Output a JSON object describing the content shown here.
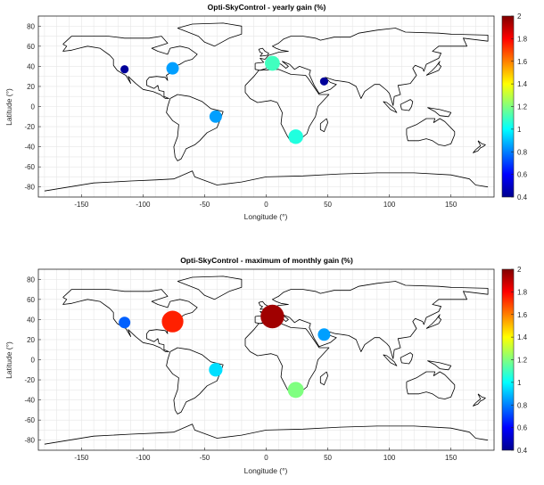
{
  "chart_data": [
    {
      "type": "scatter",
      "title": "Opti-SkyControl - yearly gain (%)",
      "xlabel": "Longitude (°)",
      "ylabel": "Latitude (°)",
      "xlim": [
        -185,
        185
      ],
      "ylim": [
        -90,
        90
      ],
      "xticks": [
        -150,
        -100,
        -50,
        0,
        50,
        100,
        150
      ],
      "yticks": [
        -80,
        -60,
        -40,
        -20,
        0,
        20,
        40,
        60,
        80
      ],
      "colorbar": {
        "min": 0.4,
        "max": 2,
        "ticks": [
          "0.4",
          "0.6",
          "0.8",
          "1",
          "1.2",
          "1.4",
          "1.6",
          "1.8",
          "2"
        ]
      },
      "points": [
        {
          "lon": -115,
          "lat": 37,
          "value": 0.42
        },
        {
          "lon": -76,
          "lat": 38,
          "value": 0.85
        },
        {
          "lon": 5,
          "lat": 43,
          "value": 1.1
        },
        {
          "lon": 47,
          "lat": 25,
          "value": 0.42
        },
        {
          "lon": -41,
          "lat": -10,
          "value": 0.85
        },
        {
          "lon": 24,
          "lat": -30,
          "value": 1.05
        }
      ]
    },
    {
      "type": "scatter",
      "title": "Opti-SkyControl - maximum of monthly gain (%)",
      "xlabel": "Longitude (°)",
      "ylabel": "Latitude (°)",
      "xlim": [
        -185,
        185
      ],
      "ylim": [
        -90,
        90
      ],
      "xticks": [
        -150,
        -100,
        -50,
        0,
        50,
        100,
        150
      ],
      "yticks": [
        -80,
        -60,
        -40,
        -20,
        0,
        20,
        40,
        60,
        80
      ],
      "colorbar": {
        "min": 0.4,
        "max": 2,
        "ticks": [
          "0.4",
          "0.6",
          "0.8",
          "1",
          "1.2",
          "1.4",
          "1.6",
          "1.8",
          "2"
        ]
      },
      "points": [
        {
          "lon": -115,
          "lat": 37,
          "value": 0.75
        },
        {
          "lon": -76,
          "lat": 38,
          "value": 1.75
        },
        {
          "lon": 5,
          "lat": 43,
          "value": 1.95
        },
        {
          "lon": 47,
          "lat": 25,
          "value": 0.85
        },
        {
          "lon": -41,
          "lat": -10,
          "value": 0.95
        },
        {
          "lon": 24,
          "lat": -30,
          "value": 1.2
        }
      ]
    }
  ]
}
